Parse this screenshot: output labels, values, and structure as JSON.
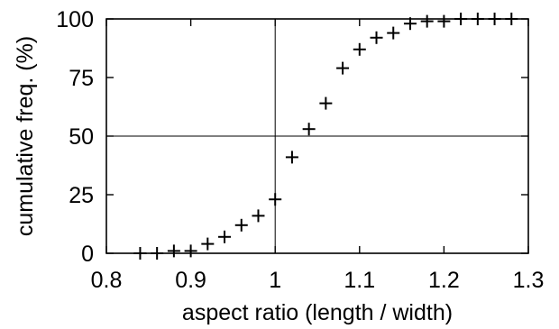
{
  "chart_data": {
    "type": "scatter",
    "title": "",
    "xlabel": "aspect ratio (length / width)",
    "ylabel": "cumulative freq. (%)",
    "xlim": [
      0.8,
      1.3
    ],
    "ylim": [
      0,
      100
    ],
    "x_ticks": [
      0.8,
      0.9,
      1.0,
      1.1,
      1.2,
      1.3
    ],
    "x_tick_labels": [
      "0.8",
      "0.9",
      "1",
      "1.1",
      "1.2",
      "1.3"
    ],
    "y_ticks": [
      0,
      25,
      50,
      75,
      100
    ],
    "y_tick_labels": [
      "0",
      "25",
      "50",
      "75",
      "100"
    ],
    "reference_lines": {
      "x": 1.0,
      "y": 50
    },
    "grid": false,
    "marker": "plus",
    "color": "#000000",
    "series": [
      {
        "x": [
          0.84,
          0.86,
          0.88,
          0.9,
          0.92,
          0.94,
          0.96,
          0.98,
          1.0,
          1.02,
          1.04,
          1.06,
          1.08,
          1.1,
          1.12,
          1.14,
          1.16,
          1.18,
          1.2,
          1.22,
          1.24,
          1.26,
          1.28
        ],
        "y": [
          0,
          0,
          1,
          1,
          4,
          7,
          12,
          16,
          23,
          41,
          53,
          64,
          79,
          87,
          92,
          94,
          98,
          99,
          99,
          100,
          100,
          100,
          100
        ]
      }
    ]
  }
}
